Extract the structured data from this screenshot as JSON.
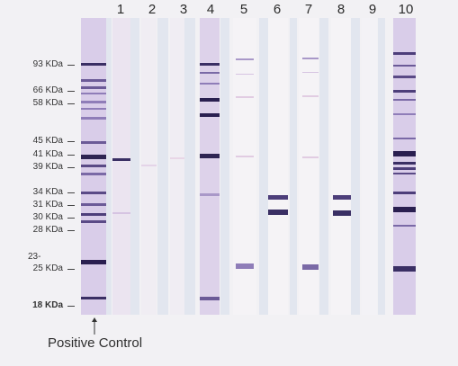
{
  "lane_numbers": [
    "1",
    "2",
    "3",
    "4",
    "5",
    "6",
    "7",
    "8",
    "9",
    "10"
  ],
  "mw_markers": [
    {
      "label": "93 KDa"
    },
    {
      "label": "66 KDa"
    },
    {
      "label": "58 KDa"
    },
    {
      "label": "45 KDa"
    },
    {
      "label": "41 KDa"
    },
    {
      "label": "39 KDa"
    },
    {
      "label": "34 KDa"
    },
    {
      "label": "31 KDa"
    },
    {
      "label": "30 KDa"
    },
    {
      "label": "28 KDa"
    },
    {
      "label": "23-"
    },
    {
      "label": "25 KDa"
    },
    {
      "label": "18 KDa"
    }
  ],
  "caption": "Positive Control",
  "colors": {
    "background": "#f2f1f4",
    "strip_tint": "#ddd2ea",
    "band_dark": "#2a1f50",
    "band_light": "#b9a8d6"
  }
}
